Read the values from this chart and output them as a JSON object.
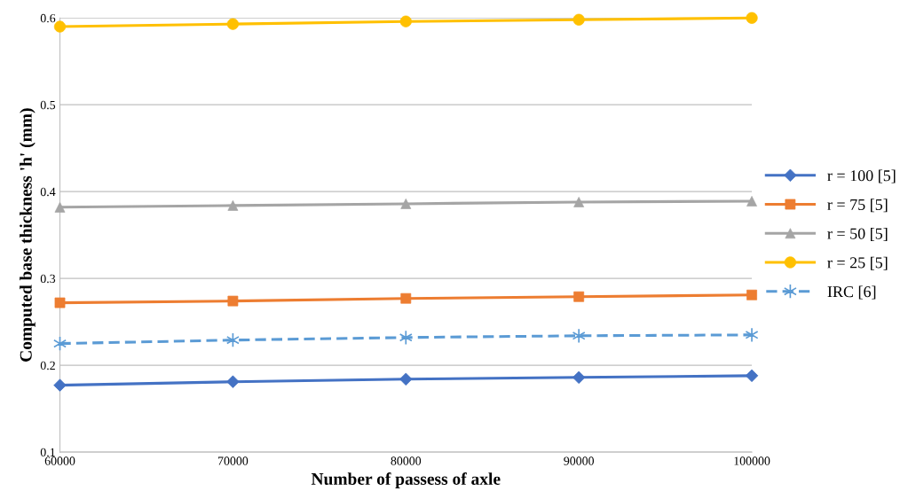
{
  "chart_data": {
    "type": "line",
    "xlabel": "Number of passess of axle",
    "ylabel": "Computed base thickness 'h' (mm)",
    "x": [
      60000,
      70000,
      80000,
      90000,
      100000
    ],
    "xlim": [
      60000,
      100000
    ],
    "xticks": [
      60000,
      70000,
      80000,
      90000,
      100000
    ],
    "ylim": [
      0.1,
      0.6
    ],
    "yticks": [
      0.1,
      0.2,
      0.3,
      0.4,
      0.5,
      0.6
    ],
    "grid": "y",
    "legend": "right",
    "series": [
      {
        "name": "r = 100 [5]",
        "color": "#4472c4",
        "marker": "diamond",
        "line_style": "solid",
        "values": [
          0.177,
          0.181,
          0.184,
          0.186,
          0.188
        ]
      },
      {
        "name": "r = 75 [5]",
        "color": "#ed7d31",
        "marker": "square",
        "line_style": "solid",
        "values": [
          0.272,
          0.274,
          0.277,
          0.279,
          0.281
        ]
      },
      {
        "name": "r = 50 [5]",
        "color": "#a5a5a5",
        "marker": "triangle",
        "line_style": "solid",
        "values": [
          0.382,
          0.384,
          0.386,
          0.388,
          0.389
        ]
      },
      {
        "name": "r = 25 [5]",
        "color": "#ffc000",
        "marker": "circle",
        "line_style": "solid",
        "values": [
          0.59,
          0.593,
          0.596,
          0.598,
          0.6
        ]
      },
      {
        "name": "IRC [6]",
        "color": "#5b9bd5",
        "marker": "cross",
        "line_style": "dashed",
        "values": [
          0.225,
          0.229,
          0.232,
          0.234,
          0.235
        ]
      }
    ]
  }
}
